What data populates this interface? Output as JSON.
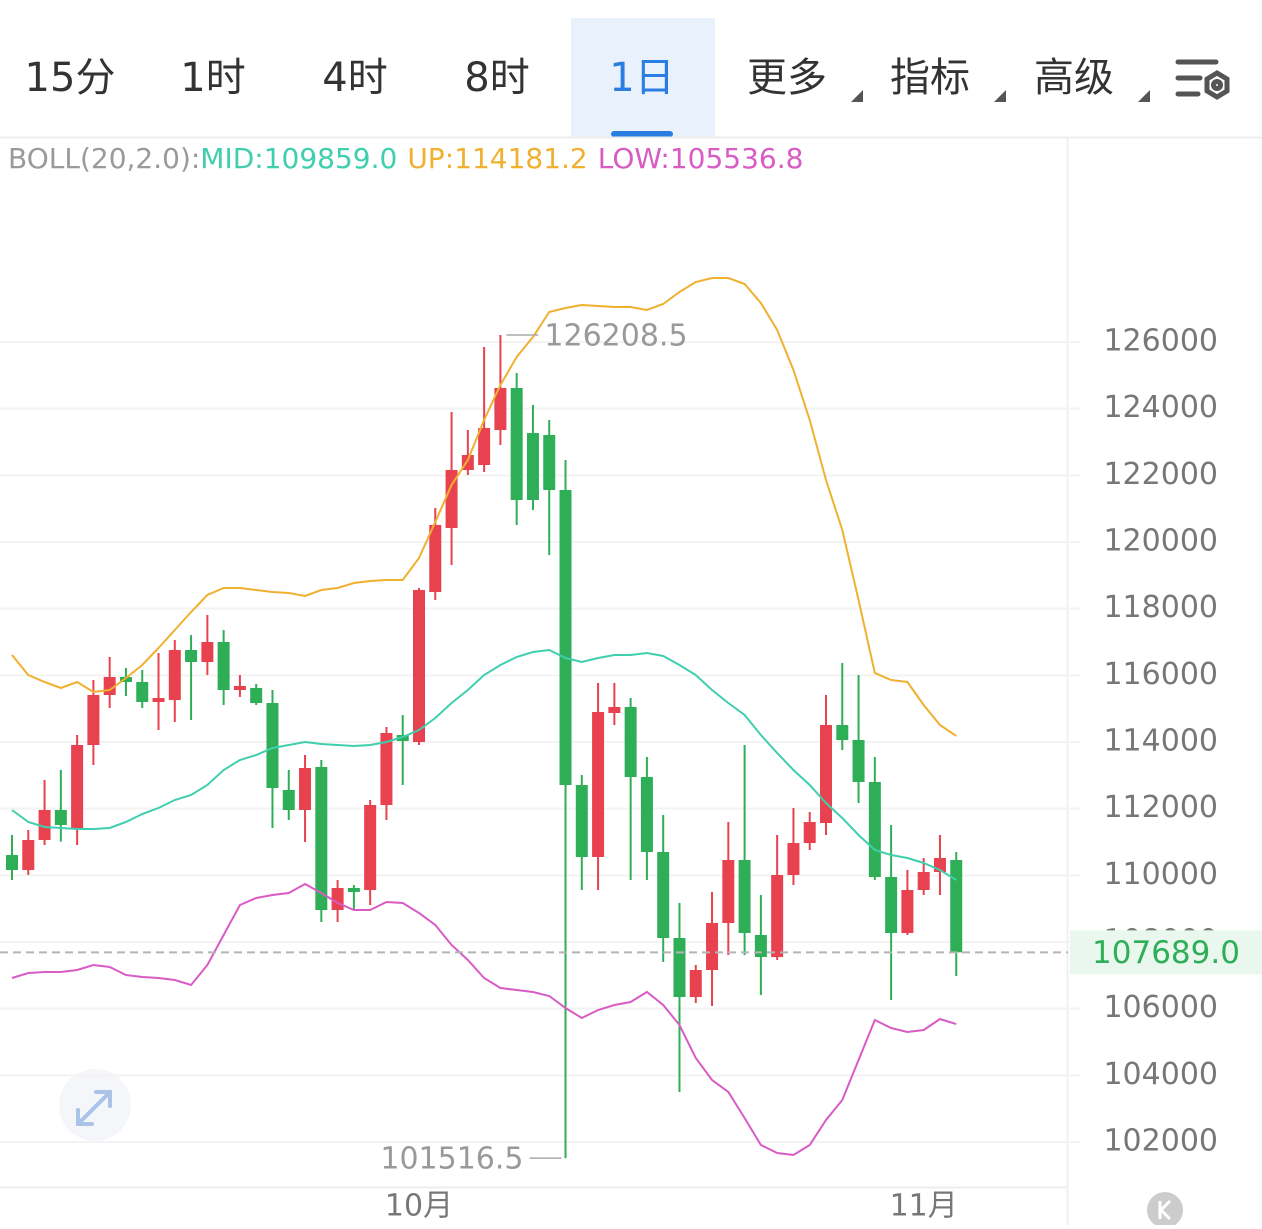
{
  "toolbar": {
    "tabs": [
      "15分",
      "1时",
      "4时",
      "8时",
      "1日",
      "更多",
      "指标",
      "高级"
    ],
    "active": 4,
    "dropdown": [
      5,
      6,
      7
    ]
  },
  "chart_data": {
    "type": "candlestick",
    "legend": [
      {
        "text": "BOLL(20,2.0):",
        "color": "#9a9a9a"
      },
      {
        "text": "MID:109859.0",
        "color": "#3fcfae"
      },
      {
        "text": "UP:114181.2",
        "color": "#f0b030"
      },
      {
        "text": "LOW:105536.8",
        "color": "#d95bc4"
      }
    ],
    "categories": [
      null,
      null,
      null,
      null,
      null,
      null,
      null,
      null,
      null,
      null,
      null,
      null,
      null,
      null,
      null,
      null,
      null,
      null,
      null,
      null,
      null,
      null,
      null,
      null,
      null,
      "10月",
      null,
      null,
      null,
      null,
      null,
      null,
      null,
      null,
      null,
      null,
      null,
      null,
      null,
      null,
      null,
      null,
      null,
      null,
      null,
      null,
      null,
      null,
      null,
      null,
      null,
      null,
      null,
      null,
      null,
      null,
      "11月",
      null,
      null
    ],
    "open": [
      110610,
      110160,
      111060,
      111960,
      111420,
      113910,
      115410,
      115950,
      115800,
      115200,
      115260,
      116760,
      116400,
      117000,
      115560,
      115620,
      115170,
      112560,
      111960,
      113250,
      108960,
      109620,
      109560,
      112110,
      114210,
      114000,
      118500,
      120420,
      122160,
      122310,
      123360,
      124620,
      123270,
      123210,
      121560,
      112710,
      110550,
      114870,
      115050,
      112950,
      110700,
      108120,
      106350,
      107160,
      108570,
      110460,
      108210,
      107550,
      110010,
      110970,
      111570,
      114510,
      114060,
      112800,
      109950,
      108270,
      109560,
      110100,
      110460
    ],
    "high": [
      111210,
      111360,
      112860,
      113160,
      114210,
      115860,
      116550,
      116220,
      116160,
      116670,
      117060,
      117210,
      117810,
      117360,
      116010,
      115740,
      115560,
      113160,
      113610,
      113460,
      109860,
      109710,
      112260,
      114450,
      114810,
      118620,
      121020,
      123900,
      123360,
      125850,
      126208.5,
      125070,
      124110,
      123660,
      122460,
      113010,
      115770,
      115770,
      115320,
      113550,
      111810,
      109170,
      107310,
      109500,
      111600,
      113910,
      109410,
      111210,
      112020,
      111900,
      115410,
      116370,
      116010,
      113550,
      111510,
      110160,
      110520,
      111210,
      110700
    ],
    "low": [
      109860,
      110010,
      110910,
      111010,
      110910,
      113310,
      115020,
      115380,
      115020,
      114360,
      114600,
      114660,
      116010,
      115110,
      115350,
      115110,
      111420,
      111660,
      111000,
      108600,
      108600,
      108960,
      109110,
      111660,
      112710,
      113910,
      118260,
      119310,
      122010,
      122100,
      122910,
      120510,
      120960,
      119610,
      101516.5,
      109560,
      109560,
      114510,
      109860,
      109860,
      107400,
      103500,
      106170,
      106080,
      107610,
      107610,
      106410,
      107460,
      109710,
      110760,
      111210,
      113760,
      112170,
      109860,
      106260,
      108210,
      109410,
      109410,
      106980
    ],
    "close": [
      110160,
      111060,
      111960,
      111510,
      113910,
      115410,
      115950,
      115800,
      115200,
      115320,
      116760,
      116400,
      117000,
      115560,
      115680,
      115170,
      112620,
      111960,
      113220,
      108960,
      109620,
      109500,
      112110,
      114270,
      114030,
      118560,
      120510,
      122160,
      122610,
      123420,
      124620,
      121260,
      121260,
      121560,
      112710,
      110550,
      114900,
      115050,
      112950,
      110700,
      108120,
      106350,
      107160,
      108570,
      110460,
      108270,
      107550,
      110010,
      110970,
      111600,
      114510,
      114060,
      112800,
      109950,
      108270,
      109560,
      110100,
      110520,
      107689
    ],
    "up_color": "#e8414f",
    "down_color": "#2fae58",
    "series": [
      {
        "color": "#f0b030",
        "values": [
          116610,
          116010,
          115800,
          115620,
          115800,
          115500,
          115560,
          115920,
          116310,
          116820,
          117360,
          117900,
          118410,
          118620,
          118620,
          118560,
          118500,
          118470,
          118380,
          118560,
          118620,
          118770,
          118830,
          118860,
          118860,
          119520,
          120600,
          121710,
          122460,
          123660,
          124710,
          125550,
          126150,
          126900,
          127020,
          127110,
          127080,
          127050,
          127050,
          126960,
          127140,
          127500,
          127800,
          127920,
          127920,
          127740,
          127170,
          126360,
          125160,
          123660,
          121860,
          120360,
          118260,
          116070,
          115860,
          115800,
          115110,
          114510,
          114181.2
        ]
      },
      {
        "color": "#3fcfae",
        "values": [
          111960,
          111600,
          111450,
          111420,
          111390,
          111390,
          111420,
          111600,
          111840,
          112020,
          112260,
          112410,
          112710,
          113160,
          113460,
          113610,
          113820,
          113910,
          114000,
          113940,
          113910,
          113880,
          113910,
          114000,
          114150,
          114360,
          114720,
          115170,
          115560,
          116010,
          116310,
          116550,
          116700,
          116760,
          116520,
          116400,
          116520,
          116610,
          116610,
          116670,
          116580,
          116310,
          116010,
          115560,
          115170,
          114810,
          114210,
          113670,
          113160,
          112710,
          112170,
          111720,
          111210,
          110760,
          110610,
          110520,
          110370,
          110160,
          109859
        ]
      },
      {
        "color": "#d95bc4",
        "values": [
          106920,
          107070,
          107100,
          107100,
          107160,
          107310,
          107250,
          107010,
          106950,
          106920,
          106860,
          106710,
          107310,
          108210,
          109110,
          109320,
          109410,
          109470,
          109740,
          109470,
          109170,
          108960,
          108960,
          109200,
          109170,
          108870,
          108510,
          107910,
          107460,
          106920,
          106620,
          106560,
          106500,
          106380,
          106020,
          105720,
          105960,
          106110,
          106200,
          106500,
          106110,
          105510,
          104520,
          103860,
          103500,
          102720,
          101910,
          101670,
          101610,
          101910,
          102660,
          103260,
          104460,
          105660,
          105420,
          105300,
          105360,
          105690,
          105536.8
        ]
      }
    ],
    "high_label": "126208.5",
    "low_label": "101516.5",
    "price_label": "107689.0",
    "ylim": [
      100710,
      132060
    ],
    "yticks": [
      102000,
      104000,
      106000,
      108000,
      110000,
      112000,
      114000,
      116000,
      118000,
      120000,
      122000,
      124000,
      126000
    ],
    "grid": true
  }
}
